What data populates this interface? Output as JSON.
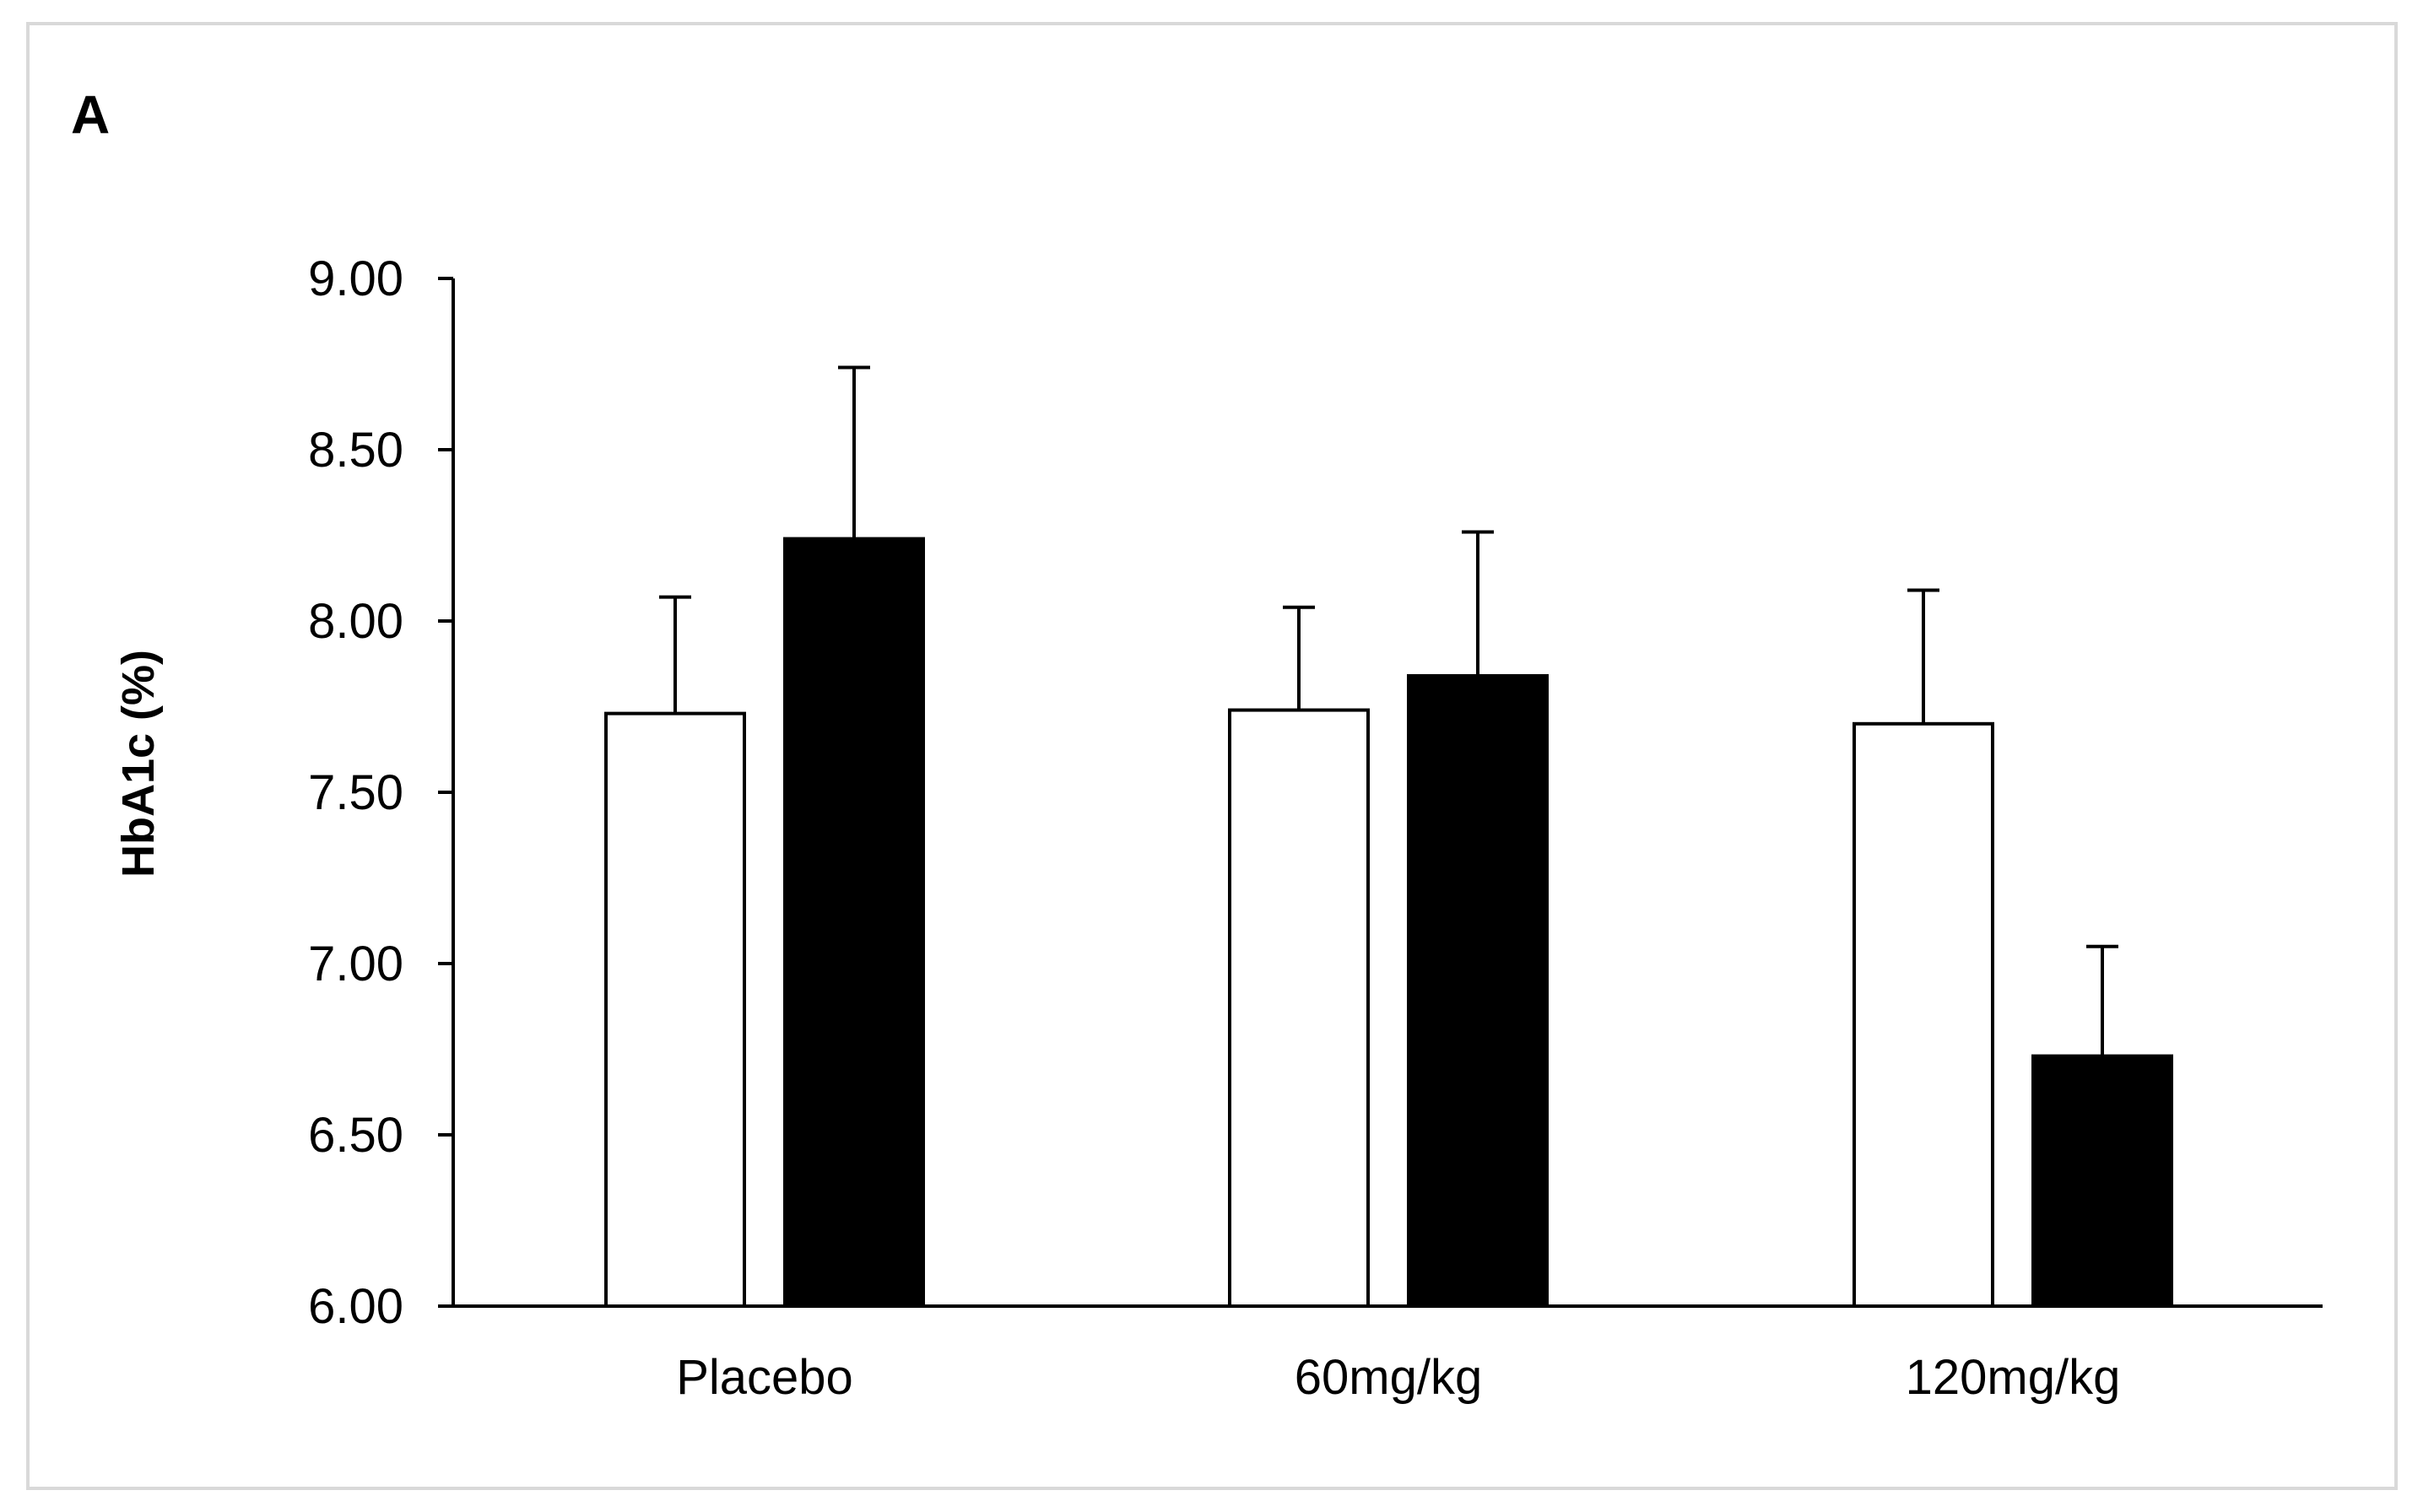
{
  "chart_data": {
    "type": "bar",
    "panel_label": "A",
    "title": "",
    "xlabel": "",
    "ylabel": "HbA1c (%)",
    "ylim": [
      6.0,
      9.0
    ],
    "yticks": [
      6.0,
      6.5,
      7.0,
      7.5,
      8.0,
      8.5,
      9.0
    ],
    "ytick_labels": [
      "6.00",
      "6.50",
      "7.00",
      "7.50",
      "8.00",
      "8.50",
      "9.00"
    ],
    "categories": [
      "Placebo",
      "60mg/kg",
      "120mg/kg"
    ],
    "series": [
      {
        "name": "",
        "fill": "#ffffff",
        "stroke": "#000000",
        "values": [
          7.73,
          7.74,
          7.7
        ],
        "error_upper": [
          0.34,
          0.3,
          0.39
        ]
      },
      {
        "name": "",
        "fill": "#000000",
        "stroke": "#000000",
        "values": [
          8.24,
          7.84,
          6.73
        ],
        "error_upper": [
          0.5,
          0.42,
          0.32
        ]
      }
    ],
    "grid": false,
    "legend": "none",
    "error_bars": "upper only"
  }
}
